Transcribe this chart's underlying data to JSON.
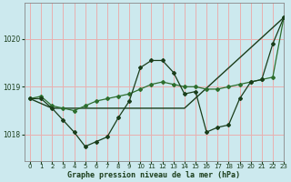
{
  "title": "Graphe pression niveau de la mer (hPa)",
  "background_color": "#cce9ee",
  "grid_color": "#e8b0b0",
  "line_color_medium": "#2d6e2d",
  "line_color_dark": "#1a3d1a",
  "xlim": [
    -0.5,
    23
  ],
  "ylim": [
    1017.45,
    1020.75
  ],
  "yticks": [
    1018,
    1019,
    1020
  ],
  "xticks": [
    0,
    1,
    2,
    3,
    4,
    5,
    6,
    7,
    8,
    9,
    10,
    11,
    12,
    13,
    14,
    15,
    16,
    17,
    18,
    19,
    20,
    21,
    22,
    23
  ],
  "series_zigzag_x": [
    0,
    1,
    2,
    3,
    4,
    5,
    6,
    7,
    8,
    9,
    10,
    11,
    12,
    13,
    14,
    15,
    16,
    17,
    18,
    19,
    20,
    21,
    22,
    23
  ],
  "series_zigzag_y": [
    1018.75,
    1018.75,
    1018.55,
    1018.3,
    1018.05,
    1017.75,
    1017.85,
    1017.95,
    1018.35,
    1018.7,
    1019.4,
    1019.55,
    1019.55,
    1019.3,
    1018.85,
    1018.9,
    1018.05,
    1018.15,
    1018.2,
    1018.75,
    1019.1,
    1019.15,
    1019.9,
    1020.45
  ],
  "series_smooth_x": [
    0,
    1,
    2,
    3,
    4,
    5,
    6,
    7,
    8,
    9,
    10,
    11,
    12,
    13,
    14,
    15,
    16,
    17,
    18,
    19,
    20,
    21,
    22,
    23
  ],
  "series_smooth_y": [
    1018.75,
    1018.8,
    1018.6,
    1018.55,
    1018.5,
    1018.6,
    1018.7,
    1018.75,
    1018.8,
    1018.85,
    1018.95,
    1019.05,
    1019.1,
    1019.05,
    1019.0,
    1019.0,
    1018.95,
    1018.95,
    1019.0,
    1019.05,
    1019.1,
    1019.15,
    1019.2,
    1020.45
  ],
  "series_trend_x": [
    0,
    2,
    14,
    23
  ],
  "series_trend_y": [
    1018.75,
    1018.55,
    1018.55,
    1020.45
  ],
  "marker": "D",
  "marker_size": 2.0,
  "linewidth_zigzag": 0.9,
  "linewidth_smooth": 0.9,
  "linewidth_trend": 1.0
}
